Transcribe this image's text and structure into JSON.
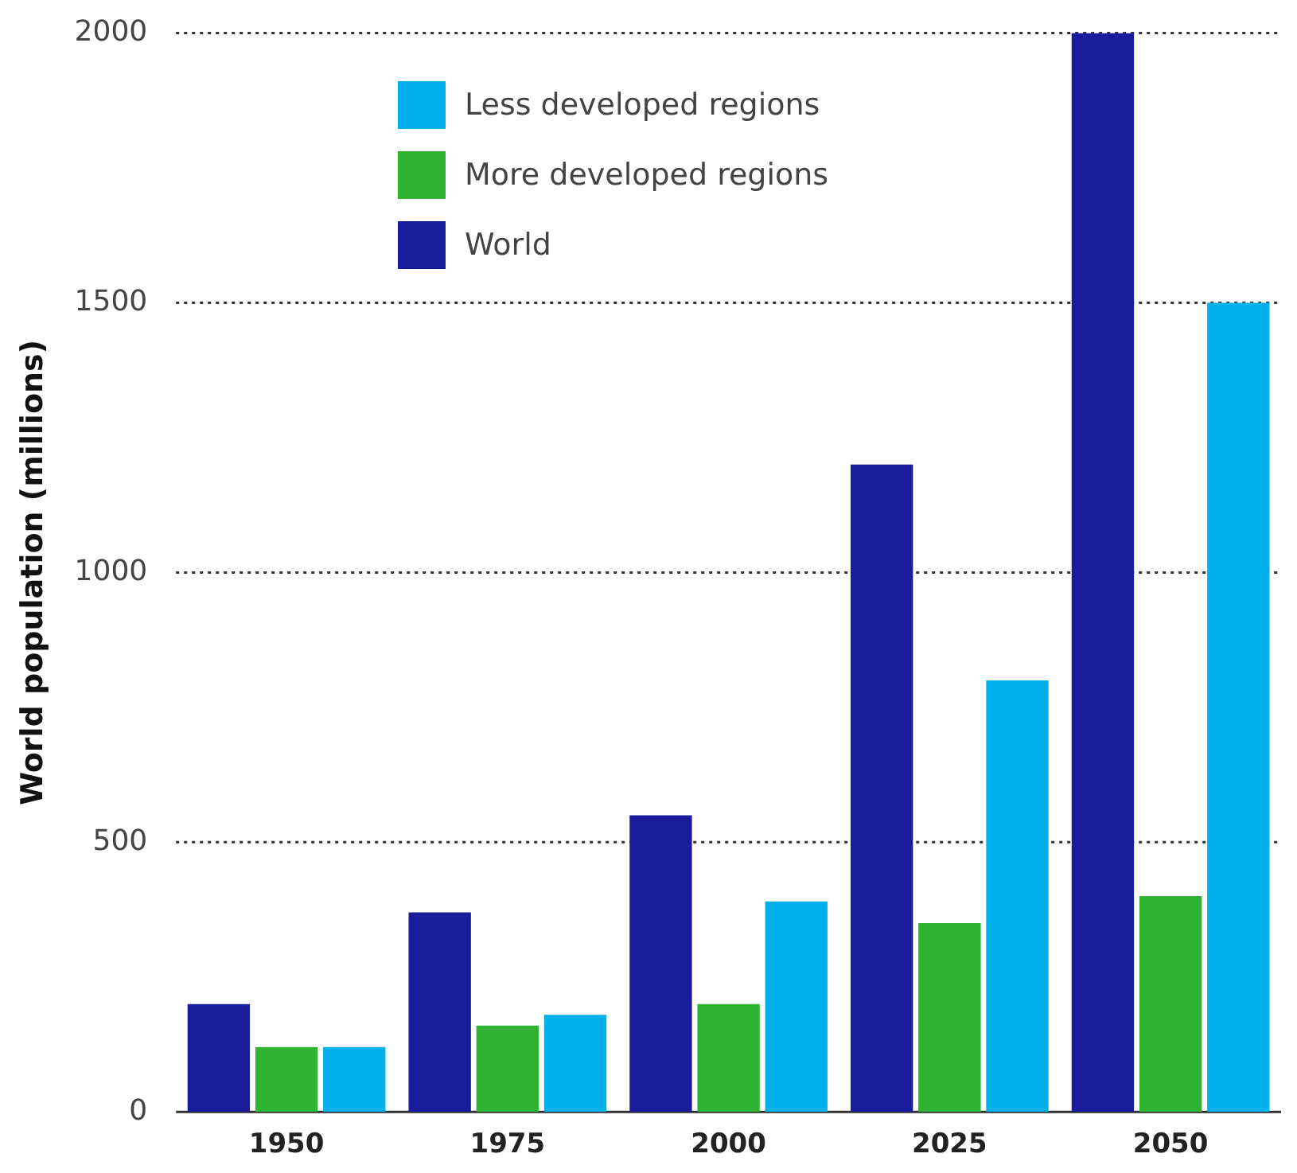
{
  "chart_data": {
    "type": "bar",
    "ylabel": "World population (millions)",
    "categories": [
      "1950",
      "1975",
      "2000",
      "2025",
      "2050"
    ],
    "series": [
      {
        "name": "World",
        "color": "#1b1c9c",
        "values": [
          200,
          370,
          550,
          1200,
          2000
        ]
      },
      {
        "name": "More developed regions",
        "color": "#2eb432",
        "values": [
          120,
          160,
          200,
          350,
          400
        ]
      },
      {
        "name": "Less developed regions",
        "color": "#00b0ea",
        "values": [
          120,
          180,
          390,
          800,
          1500
        ]
      }
    ],
    "ylim": [
      0,
      2000
    ],
    "yticks": [
      0,
      500,
      1000,
      1500,
      2000
    ],
    "grid": "y",
    "legend": "top left"
  }
}
